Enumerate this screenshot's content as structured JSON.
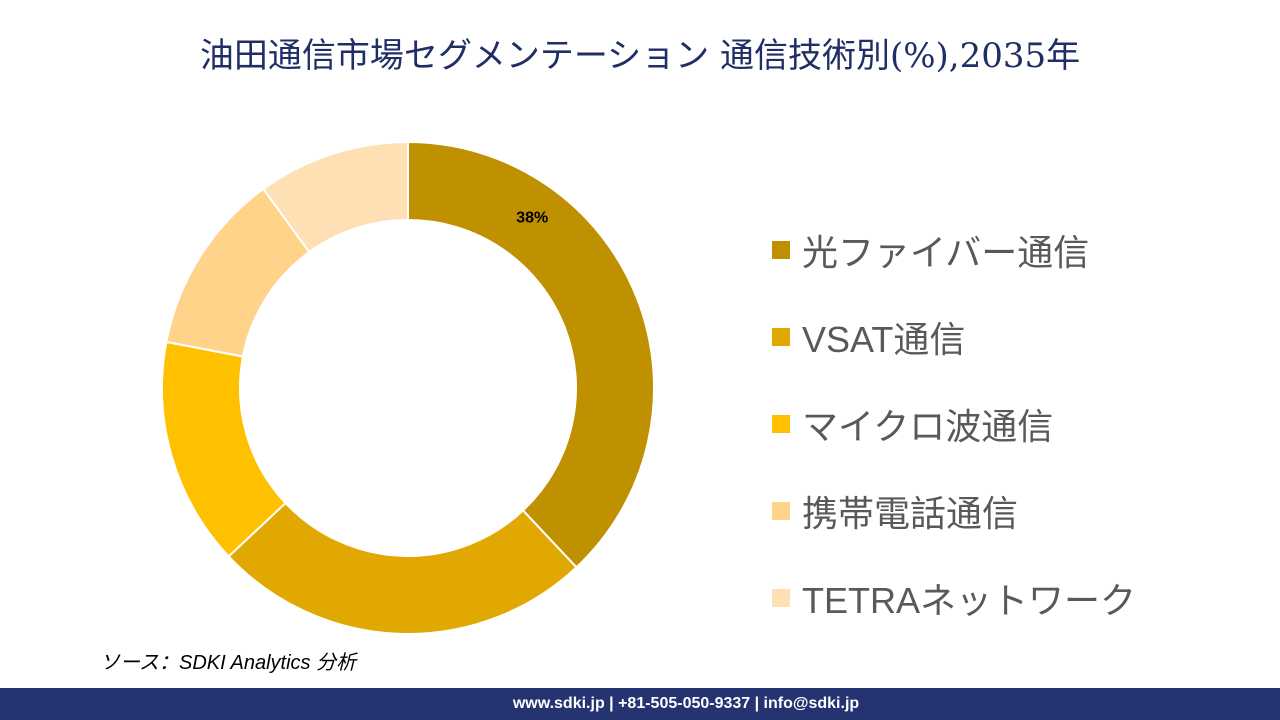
{
  "chart_data": {
    "type": "pie",
    "title": "油田通信市場セグメンテーション 通信技術別(%),2035年",
    "categories": [
      "光ファイバー通信",
      "VSAT通信",
      "マイクロ波通信",
      "携帯電話通信",
      "TETRAネットワーク"
    ],
    "values": [
      38,
      25,
      15,
      12,
      10
    ],
    "colors": [
      "#BF9000",
      "#E0A800",
      "#FFC000",
      "#FFD38A",
      "#FFE0B5"
    ],
    "data_labels": [
      "38%",
      "",
      "",
      "",
      ""
    ],
    "donut": true,
    "legend_position": "right"
  },
  "source": "ソース：SDKI Analytics 分析",
  "footer": "www.sdki.jp | +81-505-050-9337 | info@sdki.jp"
}
